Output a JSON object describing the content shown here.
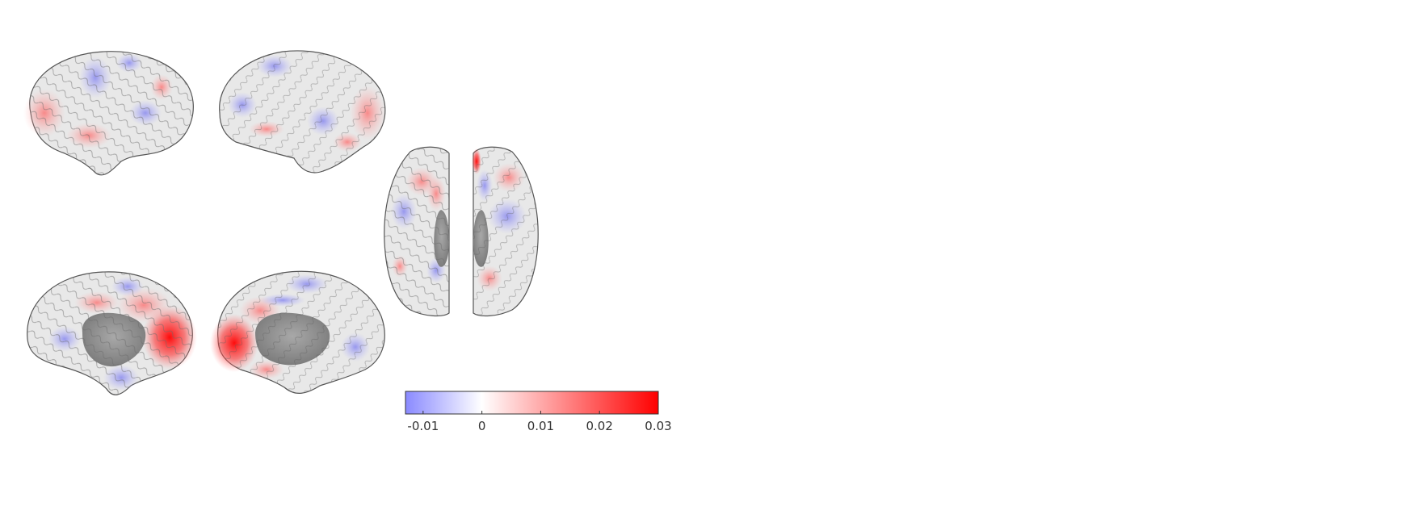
{
  "figure": {
    "views": [
      {
        "id": "left-lateral",
        "hemisphere": "left",
        "view": "lateral"
      },
      {
        "id": "right-lateral",
        "hemisphere": "right",
        "view": "lateral"
      },
      {
        "id": "left-medial",
        "hemisphere": "left",
        "view": "medial"
      },
      {
        "id": "right-medial",
        "hemisphere": "right",
        "view": "medial"
      },
      {
        "id": "dorsal-left",
        "hemisphere": "left",
        "view": "dorsal"
      },
      {
        "id": "dorsal-right",
        "hemisphere": "right",
        "view": "dorsal"
      }
    ],
    "surface_color": "#e8e8e8",
    "medial_wall_color": "#8f8f8f"
  },
  "colorbar": {
    "min": -0.013,
    "max": 0.03,
    "colors": {
      "low": "#8a8aff",
      "mid": "#ffffff",
      "high": "#ff0000"
    },
    "ticks": [
      {
        "value": -0.01,
        "label": "-0.01"
      },
      {
        "value": 0,
        "label": "0"
      },
      {
        "value": 0.01,
        "label": "0.01"
      },
      {
        "value": 0.02,
        "label": "0.02"
      },
      {
        "value": 0.03,
        "label": "0.03"
      }
    ]
  }
}
